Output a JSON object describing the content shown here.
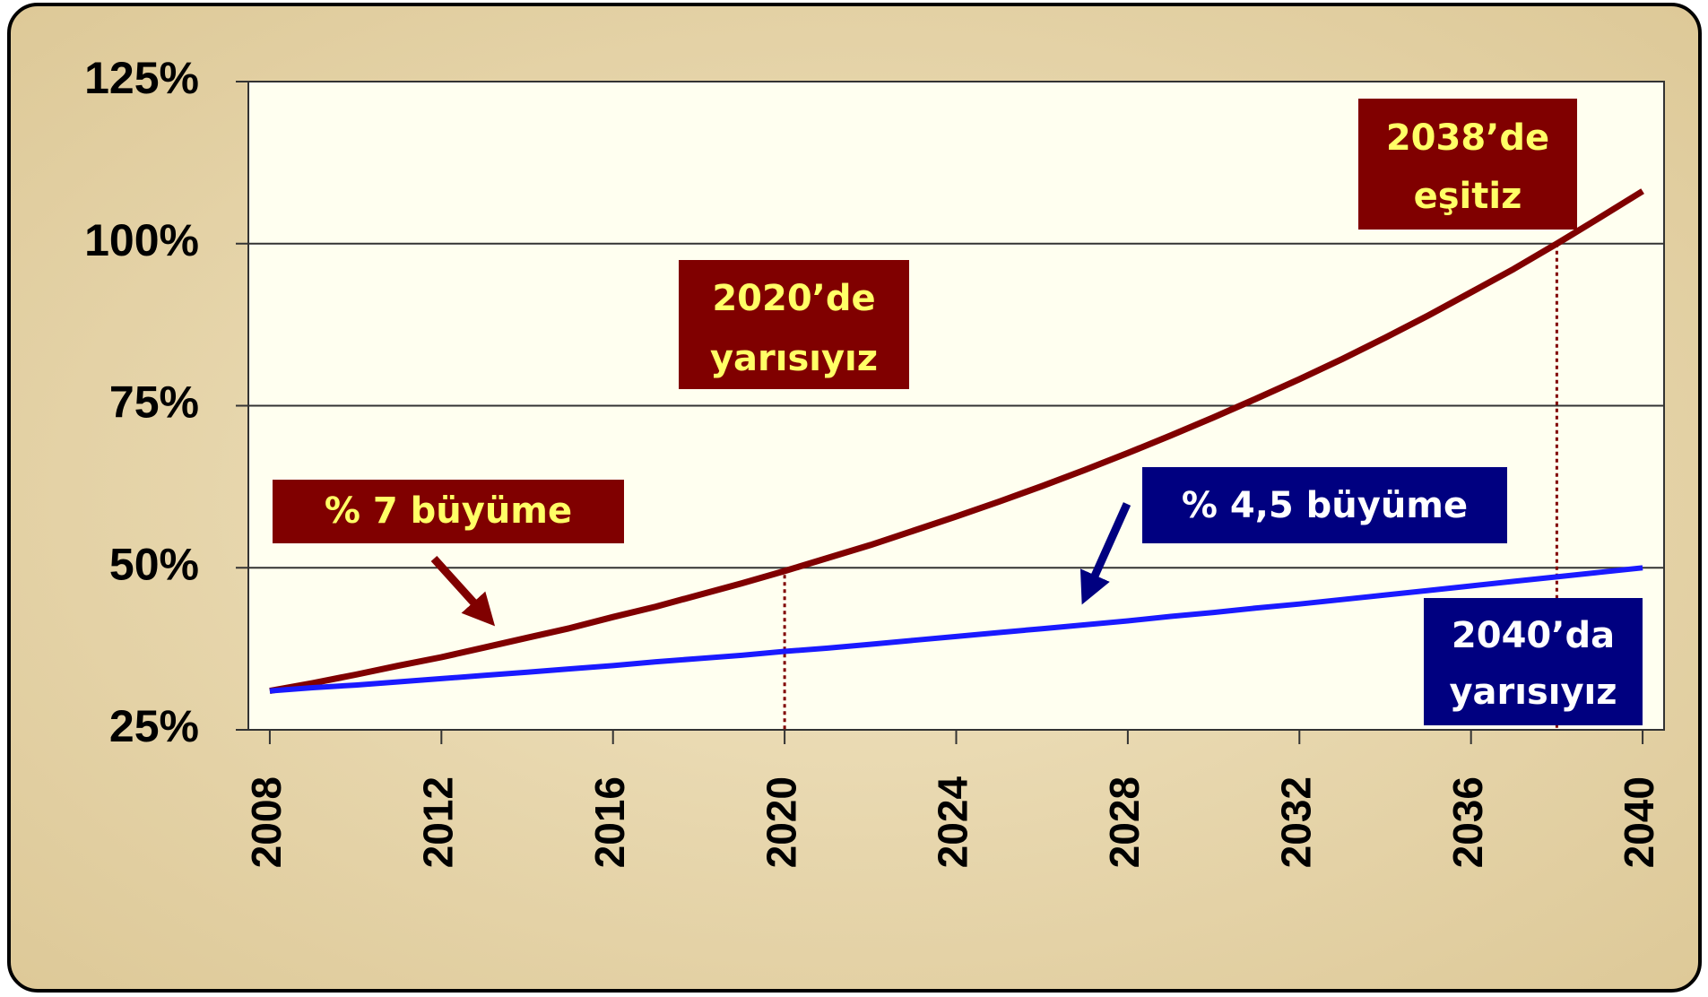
{
  "chart_data": {
    "type": "line",
    "x": [
      2008,
      2009,
      2010,
      2011,
      2012,
      2013,
      2014,
      2015,
      2016,
      2017,
      2018,
      2019,
      2020,
      2021,
      2022,
      2023,
      2024,
      2025,
      2026,
      2027,
      2028,
      2029,
      2030,
      2031,
      2032,
      2033,
      2034,
      2035,
      2036,
      2037,
      2038,
      2039,
      2040
    ],
    "series": [
      {
        "color": "#800000",
        "values": [
          31.0,
          32.2,
          33.5,
          34.9,
          36.2,
          37.7,
          39.2,
          40.7,
          42.4,
          44.0,
          45.8,
          47.6,
          49.5,
          51.5,
          53.5,
          55.7,
          57.9,
          60.2,
          62.6,
          65.1,
          67.7,
          70.4,
          73.2,
          76.1,
          79.1,
          82.2,
          85.5,
          88.9,
          92.5,
          96.1,
          100.0,
          104.0,
          108.1
        ]
      },
      {
        "color": "#1a1aff",
        "values": [
          31.0,
          31.5,
          31.9,
          32.4,
          32.9,
          33.4,
          33.9,
          34.4,
          34.9,
          35.5,
          36.0,
          36.5,
          37.1,
          37.6,
          38.2,
          38.8,
          39.4,
          40.0,
          40.6,
          41.2,
          41.8,
          42.5,
          43.1,
          43.8,
          44.4,
          45.1,
          45.8,
          46.5,
          47.2,
          47.9,
          48.6,
          49.3,
          50.0
        ]
      }
    ],
    "xlim": [
      2007.5,
      2040.5
    ],
    "xticks": [
      2008,
      2012,
      2016,
      2020,
      2024,
      2028,
      2032,
      2036,
      2040
    ],
    "ylim": [
      25,
      125
    ],
    "yticks": [
      {
        "value": 25,
        "label": "25%"
      },
      {
        "value": 50,
        "label": "50%"
      },
      {
        "value": 75,
        "label": "75%"
      },
      {
        "value": 100,
        "label": "100%"
      },
      {
        "value": 125,
        "label": "125%"
      }
    ],
    "grid": true,
    "reference_lines": [
      {
        "x": 2020,
        "y": 50
      },
      {
        "x": 2038,
        "y": 100
      }
    ],
    "annotations": [
      {
        "lines": [
          "2038’de",
          "eşitiz"
        ],
        "box": "#800000",
        "color": "#ffff66"
      },
      {
        "lines": [
          "2020’de",
          "yarısıyız"
        ],
        "box": "#800000",
        "color": "#ffff66"
      },
      {
        "lines": [
          "% 7 büyüme"
        ],
        "box": "#800000",
        "color": "#ffff66"
      },
      {
        "lines": [
          "% 4,5 büyüme"
        ],
        "box": "#000080",
        "color": "#ffffff"
      },
      {
        "lines": [
          "2040’da",
          "yarısıyız"
        ],
        "box": "#000080",
        "color": "#ffffff"
      }
    ]
  }
}
